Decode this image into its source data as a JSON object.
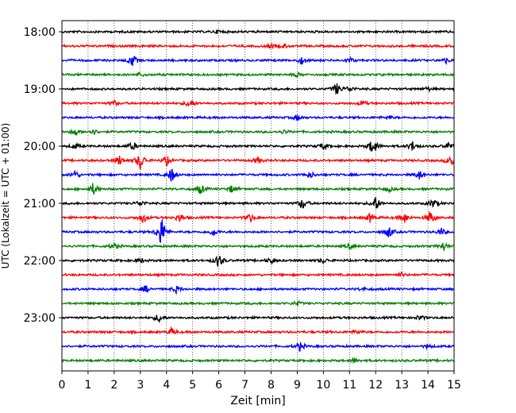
{
  "chart_data": {
    "type": "line",
    "subtype": "helicorder",
    "title": "",
    "xlabel": "Zeit  [min]",
    "ylabel": "UTC (Lokalzeit = UTC + 01:00)",
    "xlim": [
      0,
      15
    ],
    "x_ticks": [
      "0",
      "1",
      "2",
      "3",
      "4",
      "5",
      "6",
      "7",
      "8",
      "9",
      "10",
      "11",
      "12",
      "13",
      "14",
      "15"
    ],
    "grid": "vertical dotted at each minute",
    "legend": "none",
    "row_interval_min": 15,
    "color_cycle": [
      "#000000",
      "#ff0000",
      "#0000ff",
      "#008000"
    ],
    "y_ticks": [
      "18:00",
      "19:00",
      "20:00",
      "21:00",
      "22:00",
      "23:00"
    ],
    "rows": [
      {
        "start": "18:00",
        "color": "#000000",
        "events": [
          [
            6.0,
            0.3
          ]
        ]
      },
      {
        "start": "18:15",
        "color": "#ff0000",
        "events": [
          [
            8.0,
            0.4
          ],
          [
            8.5,
            0.3
          ]
        ]
      },
      {
        "start": "18:30",
        "color": "#0000ff",
        "events": [
          [
            2.7,
            1.0
          ],
          [
            9.2,
            0.7
          ],
          [
            11.0,
            0.5
          ],
          [
            14.7,
            0.4
          ]
        ]
      },
      {
        "start": "18:45",
        "color": "#008000",
        "events": [
          [
            3.0,
            0.3
          ],
          [
            9.0,
            0.3
          ]
        ]
      },
      {
        "start": "19:00",
        "color": "#000000",
        "events": [
          [
            10.5,
            1.0
          ],
          [
            11.0,
            0.5
          ],
          [
            14.0,
            0.3
          ]
        ]
      },
      {
        "start": "19:15",
        "color": "#ff0000",
        "events": [
          [
            2.0,
            0.4
          ],
          [
            4.9,
            0.8
          ],
          [
            11.5,
            0.4
          ]
        ]
      },
      {
        "start": "19:30",
        "color": "#0000ff",
        "events": [
          [
            9.0,
            0.5
          ],
          [
            12.5,
            0.3
          ]
        ]
      },
      {
        "start": "19:45",
        "color": "#008000",
        "events": [
          [
            0.5,
            0.6
          ],
          [
            1.2,
            0.5
          ],
          [
            8.5,
            0.3
          ]
        ]
      },
      {
        "start": "20:00",
        "color": "#000000",
        "events": [
          [
            0.5,
            0.5
          ],
          [
            2.7,
            0.7
          ],
          [
            10.0,
            0.6
          ],
          [
            11.9,
            1.5
          ],
          [
            13.4,
            0.8
          ],
          [
            14.8,
            0.6
          ]
        ]
      },
      {
        "start": "20:15",
        "color": "#ff0000",
        "events": [
          [
            2.2,
            0.8
          ],
          [
            3.0,
            1.6
          ],
          [
            4.0,
            0.8
          ],
          [
            7.5,
            0.5
          ],
          [
            14.9,
            1.2
          ]
        ]
      },
      {
        "start": "20:30",
        "color": "#0000ff",
        "events": [
          [
            0.5,
            0.7
          ],
          [
            4.2,
            1.2
          ],
          [
            9.5,
            0.5
          ],
          [
            13.7,
            0.8
          ]
        ]
      },
      {
        "start": "20:45",
        "color": "#008000",
        "events": [
          [
            1.2,
            1.0
          ],
          [
            5.3,
            0.8
          ],
          [
            6.5,
            0.6
          ],
          [
            12.5,
            0.4
          ]
        ]
      },
      {
        "start": "21:00",
        "color": "#000000",
        "events": [
          [
            3.0,
            0.5
          ],
          [
            9.2,
            1.0
          ],
          [
            12.0,
            1.2
          ],
          [
            14.2,
            0.8
          ]
        ]
      },
      {
        "start": "21:15",
        "color": "#ff0000",
        "events": [
          [
            3.1,
            0.9
          ],
          [
            4.5,
            0.7
          ],
          [
            7.2,
            0.7
          ],
          [
            11.8,
            0.8
          ],
          [
            13.1,
            0.9
          ],
          [
            14.1,
            1.1
          ]
        ]
      },
      {
        "start": "21:30",
        "color": "#0000ff",
        "events": [
          [
            3.8,
            2.8
          ],
          [
            5.8,
            0.6
          ],
          [
            12.5,
            1.0
          ],
          [
            14.5,
            0.6
          ]
        ]
      },
      {
        "start": "21:45",
        "color": "#008000",
        "events": [
          [
            2.0,
            0.5
          ],
          [
            11.0,
            0.4
          ],
          [
            14.6,
            0.7
          ]
        ]
      },
      {
        "start": "22:00",
        "color": "#000000",
        "events": [
          [
            3.0,
            0.4
          ],
          [
            6.0,
            1.2
          ],
          [
            8.0,
            0.5
          ],
          [
            10.0,
            0.4
          ]
        ]
      },
      {
        "start": "22:15",
        "color": "#ff0000",
        "events": [
          [
            13.0,
            0.3
          ]
        ]
      },
      {
        "start": "22:30",
        "color": "#0000ff",
        "events": [
          [
            3.2,
            0.6
          ],
          [
            4.4,
            0.6
          ],
          [
            11.5,
            0.3
          ]
        ]
      },
      {
        "start": "22:45",
        "color": "#008000",
        "events": [
          [
            9.0,
            0.4
          ]
        ]
      },
      {
        "start": "23:00",
        "color": "#000000",
        "events": [
          [
            3.7,
            0.7
          ],
          [
            13.7,
            0.4
          ]
        ]
      },
      {
        "start": "23:15",
        "color": "#ff0000",
        "events": [
          [
            4.2,
            0.6
          ],
          [
            11.3,
            0.3
          ]
        ]
      },
      {
        "start": "23:30",
        "color": "#0000ff",
        "events": [
          [
            9.1,
            0.7
          ],
          [
            14.0,
            0.3
          ]
        ]
      },
      {
        "start": "23:45",
        "color": "#008000",
        "events": [
          [
            11.2,
            0.4
          ]
        ]
      }
    ]
  }
}
